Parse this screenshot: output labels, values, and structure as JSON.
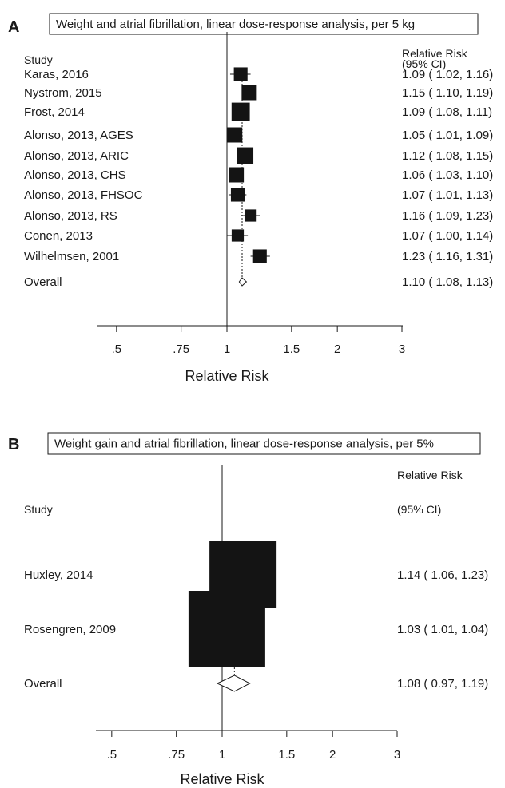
{
  "chart_data": [
    {
      "type": "forest",
      "panel": "A",
      "title": "Weight and atrial fibrillation, linear dose-response analysis, per 5 kg",
      "study_header": "Study",
      "rr_header_1": "Relative Risk",
      "rr_header_2": "(95% CI)",
      "xlabel": "Relative Risk",
      "x_scale": "log",
      "x_ticks": [
        0.5,
        0.75,
        1,
        1.5,
        2,
        3
      ],
      "x_tick_labels": [
        ".5",
        ".75",
        "1",
        "1.5",
        "2",
        "3"
      ],
      "studies": [
        {
          "label": "Karas, 2016",
          "rr": 1.09,
          "lo": 1.02,
          "hi": 1.16,
          "rr_text": "1.09 ( 1.02, 1.16)",
          "weight": 0.9
        },
        {
          "label": "Nystrom, 2015",
          "rr": 1.15,
          "lo": 1.1,
          "hi": 1.19,
          "rr_text": "1.15 ( 1.10, 1.19)",
          "weight": 1.0
        },
        {
          "label": "Frost, 2014",
          "rr": 1.09,
          "lo": 1.08,
          "hi": 1.11,
          "rr_text": "1.09 ( 1.08, 1.11)",
          "weight": 1.2
        },
        {
          "label": "Alonso, 2013, AGES",
          "rr": 1.05,
          "lo": 1.01,
          "hi": 1.09,
          "rr_text": "1.05 ( 1.01, 1.09)",
          "weight": 1.0
        },
        {
          "label": "Alonso, 2013, ARIC",
          "rr": 1.12,
          "lo": 1.08,
          "hi": 1.15,
          "rr_text": "1.12 ( 1.08, 1.15)",
          "weight": 1.1
        },
        {
          "label": "Alonso, 2013, CHS",
          "rr": 1.06,
          "lo": 1.03,
          "hi": 1.1,
          "rr_text": "1.06 ( 1.03, 1.10)",
          "weight": 1.0
        },
        {
          "label": "Alonso, 2013, FHSOC",
          "rr": 1.07,
          "lo": 1.01,
          "hi": 1.13,
          "rr_text": "1.07 ( 1.01, 1.13)",
          "weight": 0.9
        },
        {
          "label": "Alonso, 2013, RS",
          "rr": 1.16,
          "lo": 1.09,
          "hi": 1.23,
          "rr_text": "1.16 ( 1.09, 1.23)",
          "weight": 0.8
        },
        {
          "label": "Conen, 2013",
          "rr": 1.07,
          "lo": 1.0,
          "hi": 1.14,
          "rr_text": "1.07 ( 1.00, 1.14)",
          "weight": 0.8
        },
        {
          "label": "Wilhelmsen, 2001",
          "rr": 1.23,
          "lo": 1.16,
          "hi": 1.31,
          "rr_text": "1.23 ( 1.16, 1.31)",
          "weight": 0.9
        }
      ],
      "overall": {
        "label": "Overall",
        "rr": 1.1,
        "lo": 1.08,
        "hi": 1.13,
        "rr_text": "1.10 ( 1.08, 1.13)"
      }
    },
    {
      "type": "forest",
      "panel": "B",
      "title": "Weight gain and atrial fibrillation, linear dose-response analysis, per 5%",
      "study_header": "Study",
      "rr_header_1": "Relative Risk",
      "rr_header_2": "(95% CI)",
      "xlabel": "Relative Risk",
      "x_scale": "log",
      "x_ticks": [
        0.5,
        0.75,
        1,
        1.5,
        2,
        3
      ],
      "x_tick_labels": [
        ".5",
        ".75",
        "1",
        "1.5",
        "2",
        "3"
      ],
      "studies": [
        {
          "label": "Huxley, 2014",
          "rr": 1.14,
          "lo": 1.06,
          "hi": 1.23,
          "rr_text": "1.14 ( 1.06, 1.23)",
          "weight": 1.0
        },
        {
          "label": "Rosengren, 2009",
          "rr": 1.03,
          "lo": 1.01,
          "hi": 1.04,
          "rr_text": "1.03 ( 1.01, 1.04)",
          "weight": 1.1
        }
      ],
      "overall": {
        "label": "Overall",
        "rr": 1.08,
        "lo": 0.97,
        "hi": 1.19,
        "rr_text": "1.08 ( 0.97, 1.19)"
      }
    }
  ]
}
